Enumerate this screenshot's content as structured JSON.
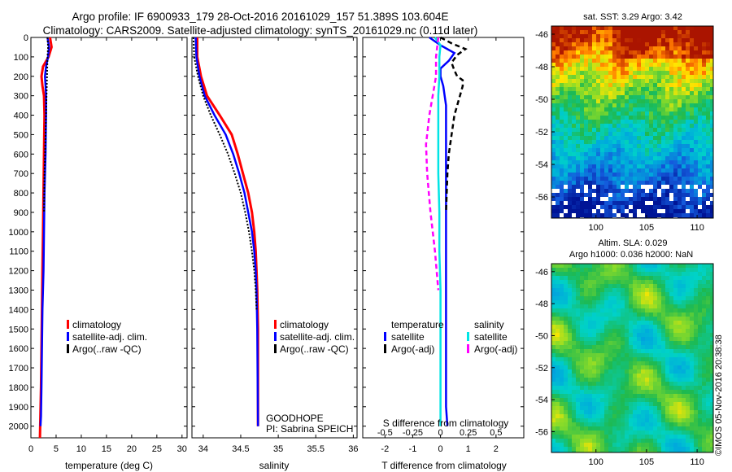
{
  "title_line1": "Argo profile: IF 6900933_179 28-Oct-2016 20161029_157 51.389S 103.604E",
  "title_line2": "Climatology: CARS2009. Satellite-adjusted climatology: synTS_20161029.nc (0.11d later)",
  "timestamp": "©IMOS 05-Nov-2016 20:38:38",
  "colors": {
    "climatology": "#ff0000",
    "satellite": "#0000ff",
    "argo": "#000000",
    "satellite_s": "#00e5e5",
    "argo_s": "#ff00ff"
  },
  "chart_data": [
    {
      "type": "line",
      "id": "temperature",
      "xlabel": "temperature (deg C)",
      "ylabel": "",
      "xlim": [
        0,
        31
      ],
      "ylim": [
        0,
        2060
      ],
      "y_reversed": true,
      "xticks": [
        0,
        5,
        10,
        15,
        20,
        25,
        30
      ],
      "yticks": [
        0,
        100,
        200,
        300,
        400,
        500,
        600,
        700,
        800,
        900,
        1000,
        1100,
        1200,
        1300,
        1400,
        1500,
        1600,
        1700,
        1800,
        1900,
        2000
      ],
      "legend": [
        "climatology",
        "satellite-adj. clim.",
        "Argo(..raw -QC)"
      ],
      "series": [
        {
          "name": "climatology",
          "points": [
            [
              3.8,
              0
            ],
            [
              4.1,
              50
            ],
            [
              3.5,
              100
            ],
            [
              2.4,
              150
            ],
            [
              2.1,
              200
            ],
            [
              2.3,
              250
            ],
            [
              2.6,
              300
            ],
            [
              2.7,
              400
            ],
            [
              2.6,
              600
            ],
            [
              2.5,
              800
            ],
            [
              2.4,
              1000
            ],
            [
              2.3,
              1200
            ],
            [
              2.2,
              1400
            ],
            [
              2.1,
              1600
            ],
            [
              2.0,
              1800
            ],
            [
              1.8,
              2060
            ]
          ]
        },
        {
          "name": "satellite-adj. clim.",
          "points": [
            [
              3.3,
              0
            ],
            [
              3.6,
              50
            ],
            [
              3.4,
              100
            ],
            [
              3.0,
              150
            ],
            [
              2.8,
              200
            ],
            [
              2.9,
              250
            ],
            [
              3.0,
              300
            ],
            [
              3.0,
              400
            ],
            [
              2.9,
              600
            ],
            [
              2.7,
              800
            ],
            [
              2.6,
              1000
            ],
            [
              2.5,
              1200
            ],
            [
              2.3,
              1400
            ],
            [
              2.2,
              1600
            ],
            [
              2.1,
              1800
            ],
            [
              2.0,
              1950
            ],
            [
              1.9,
              2000
            ]
          ]
        },
        {
          "name": "Argo(..raw -QC)",
          "points": [
            [
              3.3,
              0
            ],
            [
              3.4,
              50
            ],
            [
              3.3,
              100
            ],
            [
              3.2,
              200
            ],
            [
              3.1,
              300
            ],
            [
              3.0,
              400
            ],
            [
              2.9,
              500
            ],
            [
              2.7,
              700
            ],
            [
              2.6,
              900
            ]
          ]
        }
      ]
    },
    {
      "type": "line",
      "id": "salinity",
      "xlabel": "salinity",
      "ylabel": "",
      "xlim": [
        33.85,
        36.05
      ],
      "ylim": [
        0,
        2060
      ],
      "y_reversed": true,
      "xticks": [
        34,
        34.5,
        35,
        35.5,
        36
      ],
      "legend": [
        "climatology",
        "satellite-adj. clim.",
        "Argo(..raw -QC)"
      ],
      "annotation": [
        "GOODHOPE",
        "PI: Sabrina SPEICH"
      ],
      "series": [
        {
          "name": "climatology",
          "points": [
            [
              33.92,
              0
            ],
            [
              33.92,
              100
            ],
            [
              33.97,
              200
            ],
            [
              34.05,
              300
            ],
            [
              34.22,
              400
            ],
            [
              34.38,
              500
            ],
            [
              34.46,
              600
            ],
            [
              34.53,
              700
            ],
            [
              34.6,
              800
            ],
            [
              34.65,
              900
            ],
            [
              34.68,
              1000
            ],
            [
              34.7,
              1100
            ],
            [
              34.71,
              1200
            ],
            [
              34.72,
              1300
            ],
            [
              34.73,
              1500
            ],
            [
              34.73,
              2000
            ]
          ]
        },
        {
          "name": "satellite-adj. clim.",
          "points": [
            [
              33.9,
              0
            ],
            [
              33.91,
              100
            ],
            [
              33.95,
              200
            ],
            [
              34.02,
              300
            ],
            [
              34.15,
              400
            ],
            [
              34.3,
              500
            ],
            [
              34.4,
              600
            ],
            [
              34.48,
              700
            ],
            [
              34.55,
              800
            ],
            [
              34.6,
              900
            ],
            [
              34.65,
              1000
            ],
            [
              34.68,
              1100
            ],
            [
              34.7,
              1200
            ],
            [
              34.71,
              1300
            ],
            [
              34.72,
              1500
            ],
            [
              34.73,
              2000
            ]
          ]
        },
        {
          "name": "Argo(..raw -QC)",
          "points": [
            [
              33.87,
              0
            ],
            [
              33.88,
              100
            ],
            [
              33.93,
              200
            ],
            [
              34.0,
              300
            ],
            [
              34.1,
              400
            ],
            [
              34.22,
              500
            ],
            [
              34.33,
              600
            ],
            [
              34.42,
              700
            ],
            [
              34.5,
              800
            ],
            [
              34.56,
              900
            ],
            [
              34.61,
              1000
            ],
            [
              34.65,
              1100
            ],
            [
              34.68,
              1200
            ],
            [
              34.7,
              1300
            ],
            [
              34.71,
              1400
            ]
          ]
        }
      ]
    },
    {
      "type": "line",
      "id": "differences",
      "xlabel": "T difference from climatology",
      "x2label": "S difference from climatology",
      "xlim": [
        -2.8,
        3.0
      ],
      "x2lim": [
        -0.7,
        0.75
      ],
      "ylim": [
        0,
        2060
      ],
      "y_reversed": true,
      "xticks": [
        -2,
        -1,
        0,
        1,
        2
      ],
      "x2ticks": [
        -0.5,
        -0.25,
        0,
        0.25,
        0.5
      ],
      "legend_groups": [
        "temperature",
        "salinity"
      ],
      "legend": [
        "satellite",
        "Argo(-adj)",
        "satellite",
        "Argo(-adj)"
      ],
      "series": [
        {
          "name": "satellite",
          "group": "temperature",
          "points": [
            [
              -0.4,
              0
            ],
            [
              0.0,
              40
            ],
            [
              0.5,
              80
            ],
            [
              0.3,
              120
            ],
            [
              0.0,
              160
            ],
            [
              0.0,
              200
            ],
            [
              0.1,
              250
            ],
            [
              0.2,
              350
            ],
            [
              0.2,
              500
            ],
            [
              0.2,
              700
            ],
            [
              0.2,
              900
            ],
            [
              0.2,
              1100
            ],
            [
              0.2,
              1300
            ],
            [
              0.2,
              1600
            ],
            [
              0.2,
              1900
            ],
            [
              0.25,
              2000
            ]
          ]
        },
        {
          "name": "Argo(-adj)",
          "group": "temperature",
          "points": [
            [
              0.0,
              0
            ],
            [
              0.4,
              30
            ],
            [
              0.9,
              60
            ],
            [
              0.6,
              90
            ],
            [
              0.4,
              130
            ],
            [
              0.5,
              170
            ],
            [
              0.6,
              200
            ],
            [
              0.8,
              220
            ],
            [
              0.8,
              250
            ],
            [
              0.7,
              300
            ],
            [
              0.5,
              400
            ],
            [
              0.3,
              600
            ],
            [
              0.25,
              700
            ],
            [
              0.2,
              900
            ]
          ]
        },
        {
          "name": "satellite",
          "group": "salinity",
          "points": [
            [
              -0.05,
              0
            ],
            [
              0.0,
              40
            ],
            [
              -0.01,
              100
            ],
            [
              -0.01,
              200
            ],
            [
              -0.02,
              300
            ],
            [
              -0.02,
              500
            ],
            [
              -0.02,
              700
            ],
            [
              -0.01,
              900
            ],
            [
              -0.01,
              1100
            ],
            [
              0.0,
              1300
            ],
            [
              0.0,
              1600
            ],
            [
              0.0,
              1900
            ],
            [
              0.0,
              2000
            ]
          ]
        },
        {
          "name": "Argo(-adj)",
          "group": "salinity",
          "points": [
            [
              -0.02,
              0
            ],
            [
              -0.04,
              100
            ],
            [
              -0.04,
              200
            ],
            [
              -0.07,
              300
            ],
            [
              -0.1,
              400
            ],
            [
              -0.13,
              550
            ],
            [
              -0.12,
              700
            ],
            [
              -0.09,
              900
            ],
            [
              -0.05,
              1100
            ],
            [
              -0.02,
              1300
            ]
          ]
        }
      ]
    },
    {
      "type": "heatmap",
      "id": "sst_map",
      "title": "sat. SST: 3.29 Argo: 3.42",
      "xticks": [
        100,
        105,
        110
      ],
      "yticks": [
        -46,
        -48,
        -50,
        -52,
        -54,
        -56
      ],
      "xlim": [
        95.6,
        111.6
      ],
      "ylim": [
        -57.3,
        -45.5
      ]
    },
    {
      "type": "heatmap",
      "id": "sla_map",
      "title": "Altim. SLA: 0.029",
      "subtitle": "Argo h1000: 0.036 h2000: NaN",
      "xticks": [
        100,
        105,
        110
      ],
      "yticks": [
        -46,
        -48,
        -50,
        -52,
        -54,
        -56
      ],
      "xlim": [
        95.6,
        111.6
      ],
      "ylim": [
        -57.3,
        -45.5
      ]
    }
  ]
}
